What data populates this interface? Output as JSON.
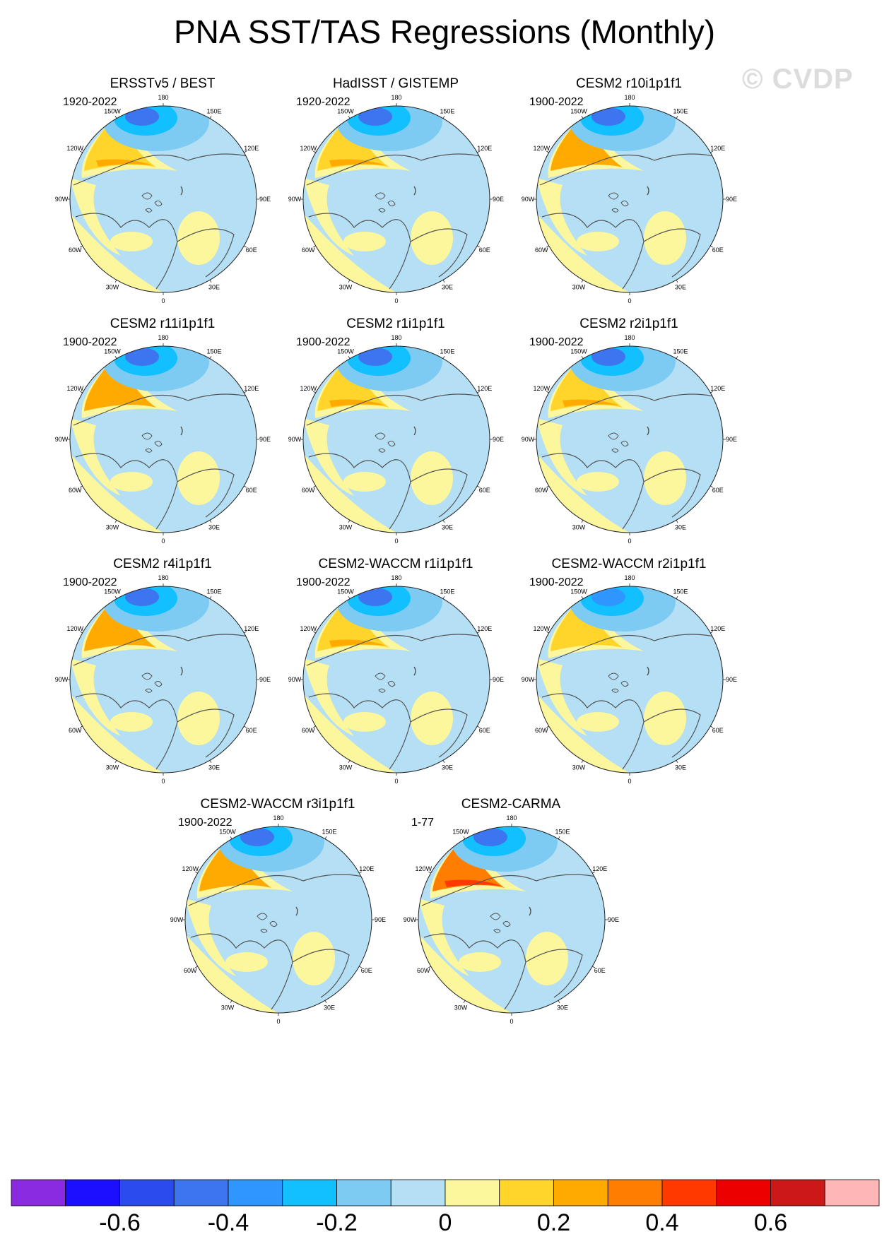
{
  "title": "PNA SST/TAS Regressions (Monthly)",
  "watermark": "© CVDP",
  "lon_labels": [
    "180",
    "150E",
    "120E",
    "90E",
    "60E",
    "30E",
    "0",
    "30W",
    "60W",
    "90W",
    "120W",
    "150W"
  ],
  "panels": [
    {
      "title": "ERSSTv5 / BEST",
      "years": "1920-2022",
      "warm_anom": 0.25,
      "cold_anom": -0.45
    },
    {
      "title": "HadISST / GISTEMP",
      "years": "1920-2022",
      "warm_anom": 0.22,
      "cold_anom": -0.42
    },
    {
      "title": "CESM2 r10i1p1f1",
      "years": "1900-2022",
      "warm_anom": 0.3,
      "cold_anom": -0.45
    },
    {
      "title": "CESM2 r11i1p1f1",
      "years": "1900-2022",
      "warm_anom": 0.3,
      "cold_anom": -0.4
    },
    {
      "title": "CESM2 r1i1p1f1",
      "years": "1900-2022",
      "warm_anom": 0.25,
      "cold_anom": -0.45
    },
    {
      "title": "CESM2 r2i1p1f1",
      "years": "1900-2022",
      "warm_anom": 0.25,
      "cold_anom": -0.4
    },
    {
      "title": "CESM2 r4i1p1f1",
      "years": "1900-2022",
      "warm_anom": 0.3,
      "cold_anom": -0.45
    },
    {
      "title": "CESM2-WACCM r1i1p1f1",
      "years": "1900-2022",
      "warm_anom": 0.25,
      "cold_anom": -0.4
    },
    {
      "title": "CESM2-WACCM r2i1p1f1",
      "years": "1900-2022",
      "warm_anom": 0.2,
      "cold_anom": -0.35
    },
    {
      "title": "CESM2-WACCM r3i1p1f1",
      "years": "1900-2022",
      "warm_anom": 0.3,
      "cold_anom": -0.4
    },
    {
      "title": "CESM2-CARMA",
      "years": "1-77",
      "warm_anom": 0.45,
      "cold_anom": -0.4
    }
  ],
  "colorbar": {
    "colors": [
      "#8a2be2",
      "#1a0fff",
      "#2c4bef",
      "#3d74ef",
      "#2f95ff",
      "#12c0ff",
      "#7dcbf2",
      "#b4dff5",
      "#fcf69c",
      "#ffd52c",
      "#ffaa00",
      "#ff7d00",
      "#ff3a00",
      "#ec0000",
      "#cc1818",
      "#ffb6b6"
    ],
    "labels": [
      "-0.6",
      "-0.4",
      "-0.2",
      "0",
      "0.2",
      "0.4",
      "0.6"
    ],
    "values": [
      -0.6,
      -0.4,
      -0.2,
      0,
      0.2,
      0.4,
      0.6
    ]
  }
}
